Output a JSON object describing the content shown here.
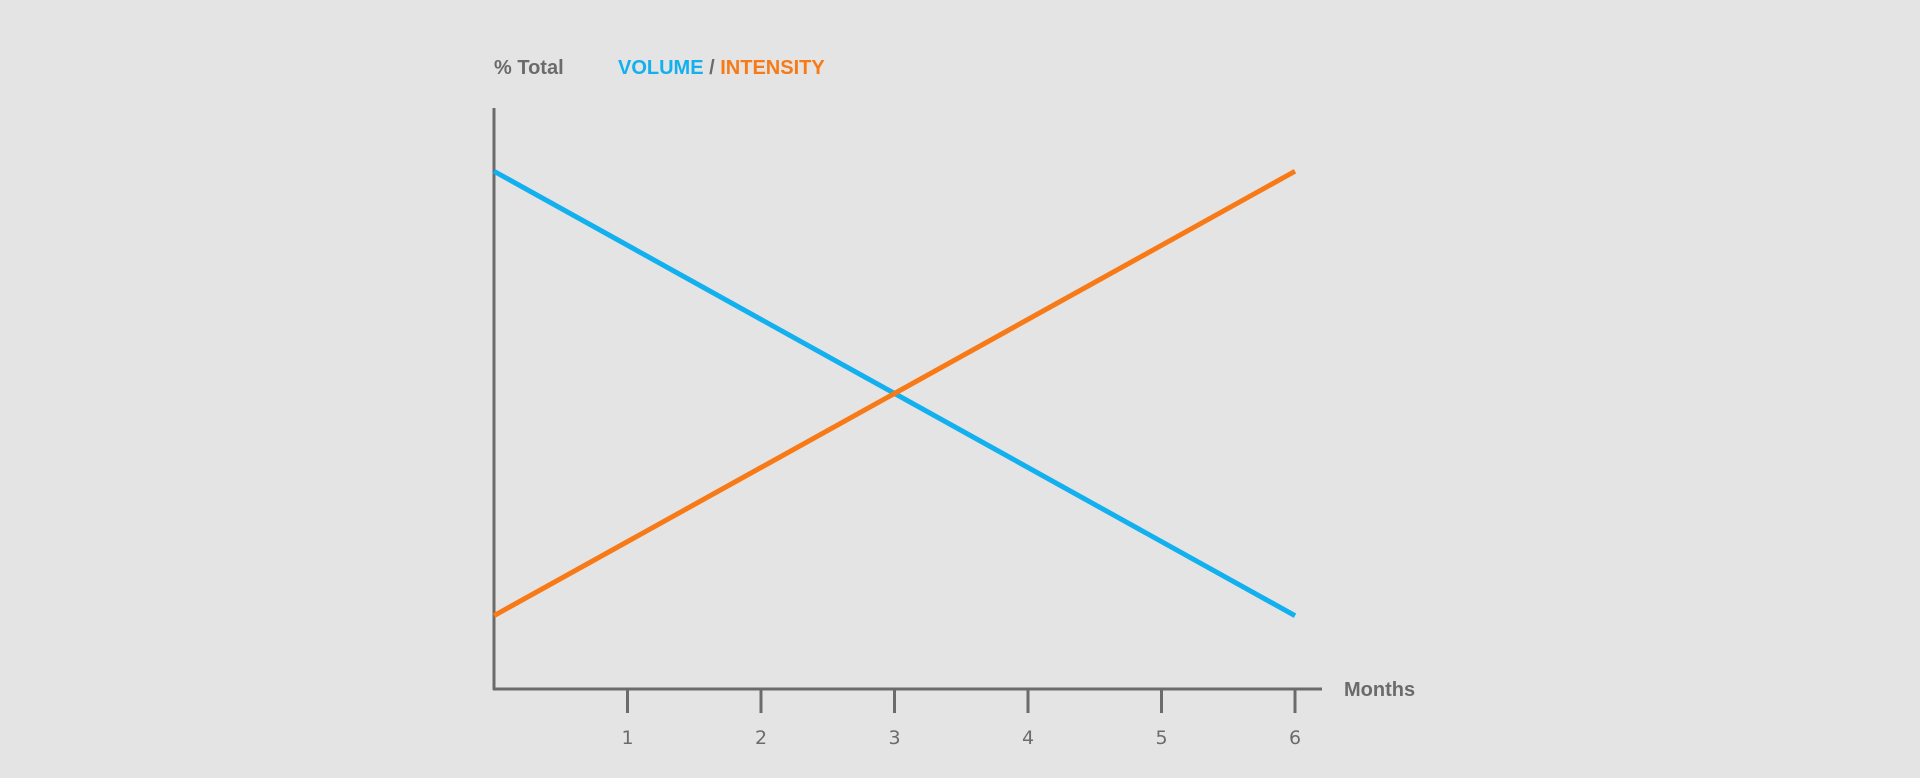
{
  "chart_data": {
    "type": "line",
    "ylabel": "% Total",
    "xlabel": "Months",
    "legend": {
      "placement": "top-left",
      "separator": " / "
    },
    "x_ticks": [
      "1",
      "2",
      "3",
      "4",
      "5",
      "6"
    ],
    "xlim": [
      0,
      6
    ],
    "ylim": [
      0,
      100
    ],
    "grid": false,
    "series": [
      {
        "name": "VOLUME",
        "color": "#12b0ee",
        "x": [
          0,
          6
        ],
        "y": [
          95,
          7
        ]
      },
      {
        "name": "INTENSITY",
        "color": "#f77a17",
        "x": [
          0,
          6
        ],
        "y": [
          7,
          95
        ]
      }
    ],
    "axis_color": "#6b6b6b"
  }
}
